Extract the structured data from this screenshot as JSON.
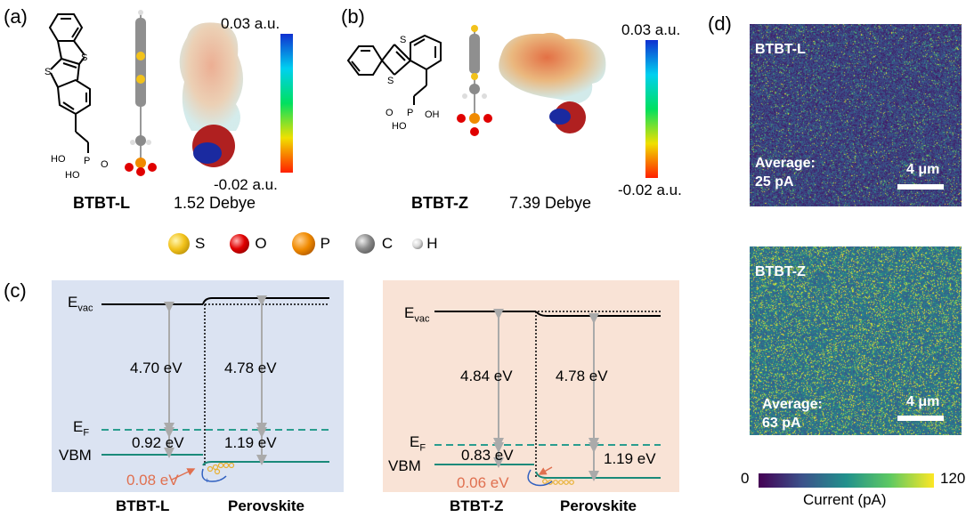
{
  "panels": {
    "a": {
      "label": "(a)",
      "molecule_name": "BTBT-L",
      "dipole": "1.52 Debye",
      "colorbar_max": "0.03 a.u.",
      "colorbar_min": "-0.02 a.u.",
      "structure_labels": {
        "s1": "S",
        "s2": "S",
        "ho1": "HO",
        "p": "P",
        "o": "O",
        "ho2": "HO"
      }
    },
    "b": {
      "label": "(b)",
      "molecule_name": "BTBT-Z",
      "dipole": "7.39 Debye",
      "colorbar_max": "0.03 a.u.",
      "colorbar_min": "-0.02 a.u.",
      "structure_labels": {
        "s1": "S",
        "s2": "S",
        "o": "O",
        "p": "P",
        "oh": "OH",
        "ho": "HO"
      }
    },
    "legend": {
      "elements": [
        {
          "symbol": "S",
          "color": "#f2c21b"
        },
        {
          "symbol": "O",
          "color": "#e00000"
        },
        {
          "symbol": "P",
          "color": "#f08a00"
        },
        {
          "symbol": "C",
          "color": "#8a8a8a"
        },
        {
          "symbol": "H",
          "color": "#d8d8d8"
        }
      ]
    },
    "c": {
      "label": "(c)",
      "left": {
        "bg": "#dbe3f2",
        "evac": "E",
        "evac_sub": "vac",
        "ef": "E",
        "ef_sub": "F",
        "vbm": "VBM",
        "wf_left": "4.70 eV",
        "wf_right": "4.78 eV",
        "gap_left": "0.92 eV",
        "gap_right": "1.19 eV",
        "offset": "0.08 eV",
        "x_left": "BTBT-L",
        "x_right": "Perovskite"
      },
      "right": {
        "bg": "#f9e3d6",
        "evac": "E",
        "evac_sub": "vac",
        "ef": "E",
        "ef_sub": "F",
        "vbm": "VBM",
        "wf_left": "4.84 eV",
        "wf_right": "4.78 eV",
        "gap_left": "0.83 eV",
        "gap_right": "1.19 eV",
        "offset": "0.06 eV",
        "x_left": "BTBT-Z",
        "x_right": "Perovskite"
      }
    },
    "d": {
      "label": "(d)",
      "maps": [
        {
          "title": "BTBT-L",
          "avg_label": "Average:",
          "avg_value": "25 pA",
          "scale": "4 μm",
          "mean_current_pA": 25
        },
        {
          "title": "BTBT-Z",
          "avg_label": "Average:",
          "avg_value": "63 pA",
          "scale": "4 μm",
          "mean_current_pA": 63
        }
      ],
      "colorbar": {
        "min": "0",
        "max": "120",
        "label": "Current (pA)"
      }
    }
  },
  "colors": {
    "evac_line": "#000000",
    "ef_line": "#2a9d8f",
    "vbm_line": "#1a8a7a",
    "arrow": "#aaaaaa",
    "offset_text": "#e07050"
  }
}
